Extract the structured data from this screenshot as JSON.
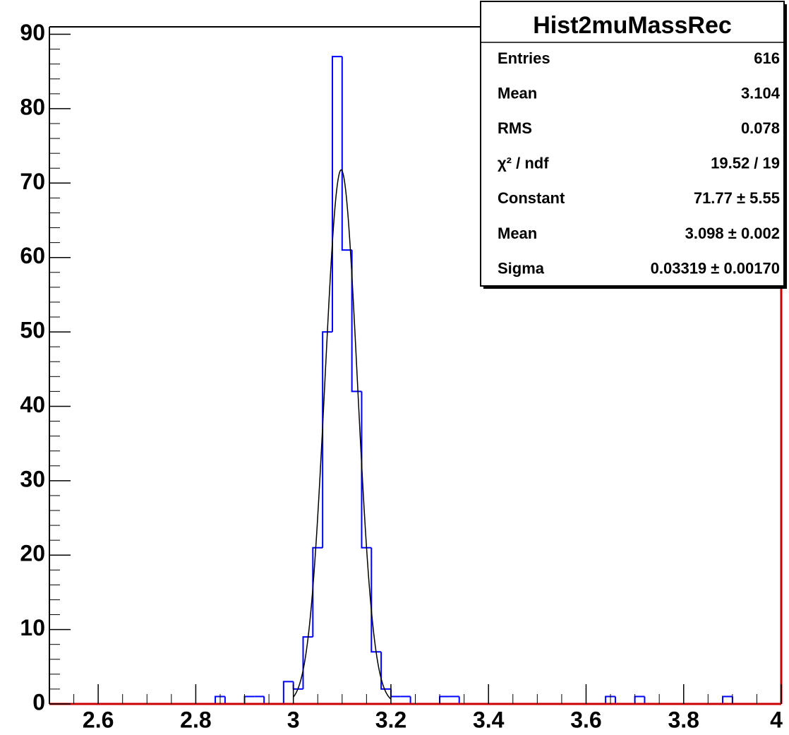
{
  "chart_data": {
    "type": "histogram",
    "bins": [
      2.5,
      2.52,
      2.54,
      2.56,
      2.58,
      2.6,
      2.62,
      2.64,
      2.66,
      2.68,
      2.7,
      2.72,
      2.74,
      2.76,
      2.78,
      2.8,
      2.82,
      2.84,
      2.86,
      2.88,
      2.9,
      2.92,
      2.94,
      2.96,
      2.98,
      3.0,
      3.02,
      3.04,
      3.06,
      3.08,
      3.1,
      3.12,
      3.14,
      3.16,
      3.18,
      3.2,
      3.22,
      3.24,
      3.26,
      3.28,
      3.3,
      3.32,
      3.34,
      3.36,
      3.38,
      3.4,
      3.42,
      3.44,
      3.46,
      3.48,
      3.5,
      3.52,
      3.54,
      3.56,
      3.58,
      3.6,
      3.62,
      3.64,
      3.66,
      3.68,
      3.7,
      3.72,
      3.74,
      3.76,
      3.78,
      3.8,
      3.82,
      3.84,
      3.86,
      3.88,
      3.9,
      3.92,
      3.94,
      3.96,
      3.98,
      4.0
    ],
    "values": [
      0,
      0,
      0,
      0,
      0,
      0,
      0,
      0,
      0,
      0,
      0,
      0,
      0,
      0,
      0,
      0,
      0,
      1,
      0,
      0,
      1,
      1,
      0,
      0,
      3,
      2,
      9,
      21,
      50,
      87,
      61,
      42,
      21,
      7,
      2,
      1,
      1,
      0,
      0,
      0,
      1,
      1,
      0,
      0,
      0,
      0,
      0,
      0,
      0,
      0,
      0,
      0,
      0,
      0,
      0,
      0,
      0,
      1,
      0,
      0,
      1,
      0,
      0,
      0,
      0,
      0,
      0,
      0,
      0,
      1,
      0,
      0,
      0,
      0,
      0
    ],
    "color": "#0000ff",
    "fit": {
      "constant": 71.77,
      "mean": 3.098,
      "sigma": 0.03319,
      "xlim": [
        3.0,
        3.2
      ],
      "color": "#000000"
    },
    "xlim": [
      2.5,
      4.0
    ],
    "ylim": [
      0,
      91
    ],
    "xticks": [
      2.6,
      2.8,
      3,
      3.2,
      3.4,
      3.6,
      3.8,
      4
    ],
    "yticks": [
      0,
      10,
      20,
      30,
      40,
      50,
      60,
      70,
      80,
      90
    ],
    "stats": {
      "title": "Hist2muMassRec",
      "rows": [
        [
          "Entries",
          616
        ],
        [
          "Mean",
          3.104
        ],
        [
          "RMS",
          0.078
        ],
        [
          "χ² / ndf",
          "19.52 / 19"
        ],
        [
          "Constant",
          "71.77 ± 5.55"
        ],
        [
          "Mean",
          "3.098 ± 0.002"
        ],
        [
          "Sigma",
          "0.03319 ± 0.00170"
        ]
      ]
    }
  }
}
